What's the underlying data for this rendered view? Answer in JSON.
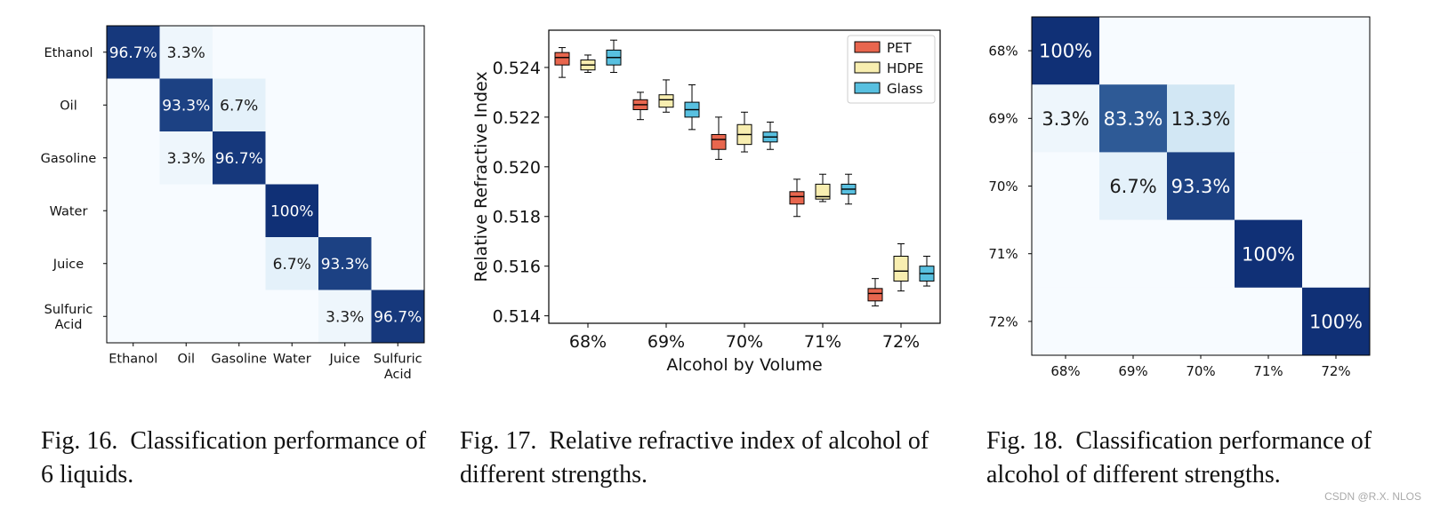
{
  "figures": [
    {
      "caption_number": "Fig. 16.",
      "caption_text": "Classification performance of 6 liquids."
    },
    {
      "caption_number": "Fig. 17.",
      "caption_text": "Relative refractive index of alcohol of different strengths."
    },
    {
      "caption_number": "Fig. 18.",
      "caption_text": "Classification performance of alcohol of different strengths."
    }
  ],
  "watermark": "CSDN @R.X. NLOS",
  "chart_data": [
    {
      "type": "heatmap",
      "id": "fig16",
      "row_labels": [
        "Ethanol",
        "Oil",
        "Gasoline",
        "Water",
        "Juice",
        "Sulfuric Acid"
      ],
      "col_labels": [
        "Ethanol",
        "Oil",
        "Gasoline",
        "Water",
        "Juice",
        "Sulfuric Acid"
      ],
      "values": [
        [
          96.7,
          3.3,
          0,
          0,
          0,
          0
        ],
        [
          0,
          93.3,
          6.7,
          0,
          0,
          0
        ],
        [
          0,
          3.3,
          96.7,
          0,
          0,
          0
        ],
        [
          0,
          0,
          0,
          100,
          0,
          0
        ],
        [
          0,
          0,
          0,
          6.7,
          93.3,
          0
        ],
        [
          0,
          0,
          0,
          0,
          3.3,
          96.7
        ]
      ],
      "cell_labels": [
        [
          "96.7%",
          "3.3%",
          "",
          "",
          "",
          ""
        ],
        [
          "",
          "93.3%",
          "6.7%",
          "",
          "",
          ""
        ],
        [
          "",
          "3.3%",
          "96.7%",
          "",
          "",
          ""
        ],
        [
          "",
          "",
          "",
          "100%",
          "",
          ""
        ],
        [
          "",
          "",
          "",
          "6.7%",
          "93.3%",
          ""
        ],
        [
          "",
          "",
          "",
          "",
          "3.3%",
          "96.7%"
        ]
      ],
      "colormap": "Blues",
      "value_range": [
        0,
        100
      ]
    },
    {
      "type": "boxplot",
      "id": "fig17",
      "categories": [
        "68%",
        "69%",
        "70%",
        "71%",
        "72%"
      ],
      "xlabel": "Alcohol by Volume",
      "ylabel": "Relative Refractive Index",
      "ylim": [
        0.5137,
        0.5255
      ],
      "yticks": [
        0.514,
        0.516,
        0.518,
        0.52,
        0.522,
        0.524
      ],
      "ytick_labels": [
        "0.514",
        "0.516",
        "0.518",
        "0.520",
        "0.522",
        "0.524"
      ],
      "legend_position": "top-right",
      "series": [
        {
          "name": "PET",
          "color": "#e8664e",
          "boxes": [
            {
              "min": 0.5236,
              "q1": 0.5241,
              "median": 0.5244,
              "q3": 0.5246,
              "max": 0.5248
            },
            {
              "min": 0.5219,
              "q1": 0.5223,
              "median": 0.5225,
              "q3": 0.5227,
              "max": 0.523
            },
            {
              "min": 0.5203,
              "q1": 0.5207,
              "median": 0.5211,
              "q3": 0.5213,
              "max": 0.522
            },
            {
              "min": 0.518,
              "q1": 0.5185,
              "median": 0.5188,
              "q3": 0.519,
              "max": 0.5195
            },
            {
              "min": 0.5144,
              "q1": 0.5146,
              "median": 0.5149,
              "q3": 0.5151,
              "max": 0.5155
            }
          ]
        },
        {
          "name": "HDPE",
          "color": "#f8eeb0",
          "boxes": [
            {
              "min": 0.5238,
              "q1": 0.5239,
              "median": 0.5241,
              "q3": 0.5243,
              "max": 0.5245
            },
            {
              "min": 0.5222,
              "q1": 0.5224,
              "median": 0.5227,
              "q3": 0.5229,
              "max": 0.5235
            },
            {
              "min": 0.5206,
              "q1": 0.5209,
              "median": 0.5213,
              "q3": 0.5217,
              "max": 0.5222
            },
            {
              "min": 0.5186,
              "q1": 0.5187,
              "median": 0.5188,
              "q3": 0.5193,
              "max": 0.5197
            },
            {
              "min": 0.515,
              "q1": 0.5154,
              "median": 0.5158,
              "q3": 0.5164,
              "max": 0.5169
            }
          ]
        },
        {
          "name": "Glass",
          "color": "#58c0e0",
          "boxes": [
            {
              "min": 0.5238,
              "q1": 0.5241,
              "median": 0.5244,
              "q3": 0.5247,
              "max": 0.5251
            },
            {
              "min": 0.5215,
              "q1": 0.522,
              "median": 0.5223,
              "q3": 0.5226,
              "max": 0.5233
            },
            {
              "min": 0.5207,
              "q1": 0.521,
              "median": 0.5212,
              "q3": 0.5214,
              "max": 0.5218
            },
            {
              "min": 0.5185,
              "q1": 0.5189,
              "median": 0.5191,
              "q3": 0.5193,
              "max": 0.5197
            },
            {
              "min": 0.5152,
              "q1": 0.5154,
              "median": 0.5157,
              "q3": 0.516,
              "max": 0.5164
            }
          ]
        }
      ]
    },
    {
      "type": "heatmap",
      "id": "fig18",
      "row_labels": [
        "68%",
        "69%",
        "70%",
        "71%",
        "72%"
      ],
      "col_labels": [
        "68%",
        "69%",
        "70%",
        "71%",
        "72%"
      ],
      "values": [
        [
          100,
          0,
          0,
          0,
          0
        ],
        [
          3.3,
          83.3,
          13.3,
          0,
          0
        ],
        [
          0,
          6.7,
          93.3,
          0,
          0
        ],
        [
          0,
          0,
          0,
          100,
          0
        ],
        [
          0,
          0,
          0,
          0,
          100
        ]
      ],
      "cell_labels": [
        [
          "100%",
          "",
          "",
          "",
          ""
        ],
        [
          "3.3%",
          "83.3%",
          "13.3%",
          "",
          ""
        ],
        [
          "",
          "6.7%",
          "93.3%",
          "",
          ""
        ],
        [
          "",
          "",
          "",
          "100%",
          ""
        ],
        [
          "",
          "",
          "",
          "",
          "100%"
        ]
      ],
      "colormap": "Blues",
      "value_range": [
        0,
        100
      ]
    }
  ]
}
